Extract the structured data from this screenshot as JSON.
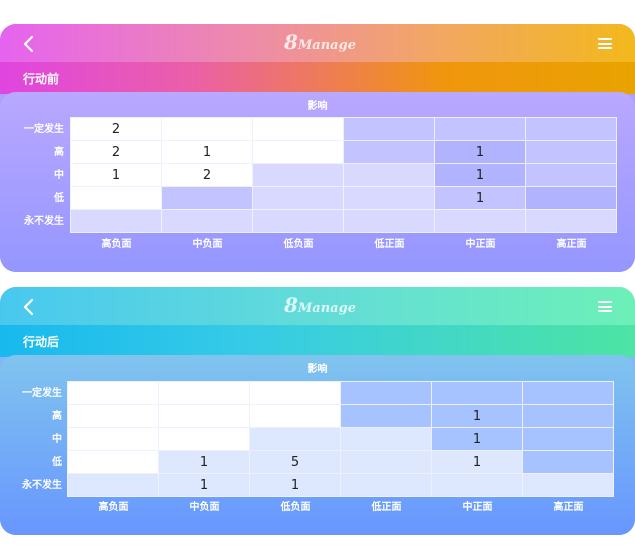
{
  "logo": {
    "numeral": "8",
    "word": "Manage"
  },
  "columns": [
    "高负面",
    "中负面",
    "低负面",
    "低正面",
    "中正面",
    "高正面"
  ],
  "rows": [
    "一定发生",
    "高",
    "中",
    "低",
    "永不发生"
  ],
  "colors": {
    "white": "#ffffff",
    "lavender_light": "#d9d9ff",
    "lavender": "#c3c4ff",
    "lavender_dark": "#b1b3ff",
    "blue_pale": "#dde8ff",
    "blue_light": "#c8d9ff",
    "blue": "#a7c3ff"
  },
  "before": {
    "subtitle": "行动前",
    "panel_title": "影响",
    "values": [
      [
        "2",
        "",
        "",
        "",
        "",
        ""
      ],
      [
        "2",
        "1",
        "",
        "",
        "1",
        ""
      ],
      [
        "1",
        "2",
        "",
        "",
        "1",
        ""
      ],
      [
        "",
        "",
        "",
        "",
        "1",
        ""
      ],
      [
        "",
        "",
        "",
        "",
        "",
        ""
      ]
    ],
    "shades": [
      [
        "white",
        "white",
        "white",
        "lavender",
        "lavender",
        "lavender"
      ],
      [
        "white",
        "white",
        "white",
        "lavender",
        "lavender_dark",
        "lavender"
      ],
      [
        "white",
        "white",
        "lavender_light",
        "lavender_light",
        "lavender_dark",
        "lavender"
      ],
      [
        "white",
        "lavender",
        "lavender_light",
        "lavender_light",
        "lavender",
        "lavender_dark"
      ],
      [
        "lavender_light",
        "lavender_light",
        "lavender_light",
        "lavender_light",
        "lavender_light",
        "lavender_light"
      ]
    ]
  },
  "after": {
    "subtitle": "行动后",
    "panel_title": "影响",
    "values": [
      [
        "",
        "",
        "",
        "",
        "",
        ""
      ],
      [
        "",
        "",
        "",
        "",
        "1",
        ""
      ],
      [
        "",
        "",
        "",
        "",
        "1",
        ""
      ],
      [
        "",
        "1",
        "5",
        "",
        "1",
        ""
      ],
      [
        "",
        "1",
        "1",
        "",
        "",
        ""
      ]
    ],
    "shades": [
      [
        "white",
        "white",
        "white",
        "blue",
        "blue",
        "blue"
      ],
      [
        "white",
        "white",
        "white",
        "blue",
        "blue",
        "blue"
      ],
      [
        "white",
        "white",
        "blue_pale",
        "blue_pale",
        "blue",
        "blue"
      ],
      [
        "white",
        "blue_pale",
        "blue_pale",
        "blue_pale",
        "blue_pale",
        "blue"
      ],
      [
        "blue_pale",
        "blue_pale",
        "blue_pale",
        "blue_pale",
        "blue_pale",
        "blue_pale"
      ]
    ]
  }
}
